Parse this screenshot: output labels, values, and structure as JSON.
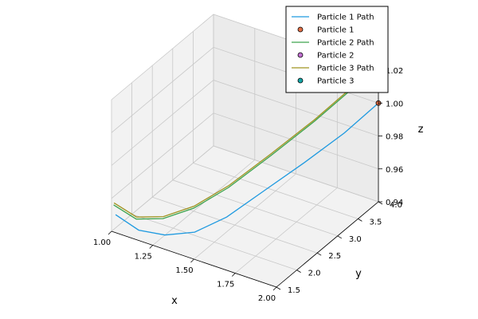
{
  "chart_data": {
    "type": "line",
    "projection": "3d",
    "title": "",
    "xlabel": "x",
    "ylabel": "y",
    "zlabel": "z",
    "xlim": [
      1.0,
      2.0
    ],
    "ylim": [
      1.5,
      4.0
    ],
    "zlim": [
      0.94,
      1.02
    ],
    "x_ticks": [
      "1.00",
      "1.25",
      "1.50",
      "1.75",
      "2.00"
    ],
    "y_ticks": [
      "1.5",
      "2.0",
      "2.5",
      "3.0",
      "3.5",
      "4.0"
    ],
    "z_ticks": [
      "0.94",
      "0.96",
      "0.98",
      "1.00",
      "1.02"
    ],
    "grid": true,
    "legend_position": "top-right",
    "series": [
      {
        "name": "Particle 1 Path",
        "marker_label": "Particle 1",
        "color": "#1f9ae0",
        "marker_color": "#e26f46",
        "x": [
          1.0,
          1.12,
          1.25,
          1.38,
          1.5,
          1.62,
          1.75,
          1.88,
          2.0
        ],
        "y": [
          1.6,
          1.68,
          1.8,
          2.0,
          2.3,
          2.75,
          3.2,
          3.65,
          4.0
        ],
        "z": [
          0.948,
          0.941,
          0.94,
          0.942,
          0.949,
          0.96,
          0.972,
          0.985,
          1.0
        ]
      },
      {
        "name": "Particle 2 Path",
        "marker_label": "Particle 2",
        "color": "#3da44d",
        "marker_color": "#c271d2",
        "x": [
          1.0,
          1.12,
          1.25,
          1.38,
          1.5,
          1.62,
          1.75,
          1.88,
          2.0
        ],
        "y": [
          1.55,
          1.62,
          1.75,
          1.98,
          2.35,
          2.9,
          3.45,
          3.95,
          4.2
        ],
        "z": [
          0.955,
          0.949,
          0.951,
          0.957,
          0.966,
          0.978,
          0.992,
          1.008,
          1.025
        ]
      },
      {
        "name": "Particle 3 Path",
        "marker_label": "Particle 3",
        "color": "#a09320",
        "marker_color": "#15a7a8",
        "x": [
          1.0,
          1.12,
          1.25,
          1.38,
          1.5,
          1.62,
          1.75,
          1.88,
          2.0
        ],
        "y": [
          1.56,
          1.63,
          1.76,
          1.99,
          2.36,
          2.9,
          3.44,
          3.94,
          4.2
        ],
        "z": [
          0.956,
          0.95,
          0.952,
          0.958,
          0.967,
          0.979,
          0.993,
          1.009,
          1.026
        ]
      }
    ],
    "end_markers": [
      {
        "name": "Particle 1",
        "color": "#e26f46",
        "x": 2.0,
        "y": 4.0,
        "z": 1.0
      }
    ]
  }
}
